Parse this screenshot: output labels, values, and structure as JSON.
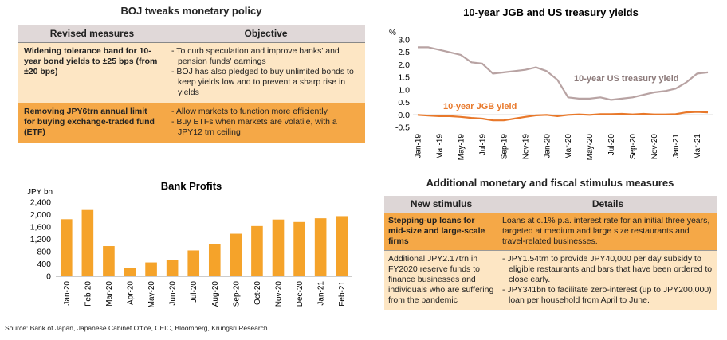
{
  "boj": {
    "title": "BOJ tweaks monetary policy",
    "headers": [
      "Revised measures",
      "Objective"
    ],
    "rows": [
      {
        "measure": "Widening tolerance band for 10-year bond yields to ±25 bps (from ±20 bps)",
        "objectives": [
          "- To curb speculation and improve banks' and pension funds' earnings",
          "- BOJ has also pledged to buy unlimited bonds to keep yields low and to prevent a sharp rise in yields"
        ]
      },
      {
        "measure": "Removing JPY6trn annual limit for buying exchange-traded fund (ETF)",
        "objectives": [
          "- Allow markets to function more efficiently",
          "- Buy ETFs when markets are volatile, with a JPY12 trn ceiling"
        ]
      }
    ]
  },
  "stimulus": {
    "title": "Additional monetary and fiscal stimulus measures",
    "headers": [
      "New stimulus",
      "Details"
    ],
    "rows": [
      {
        "measure": "Stepping-up loans for mid-size and large-scale firms",
        "details": [
          "Loans at c.1% p.a. interest rate for an initial three years, targeted at medium and large size restaurants and travel-related businesses."
        ]
      },
      {
        "measure": "Additional JPY2.17trn in FY2020 reserve funds to finance businesses and individuals who are suffering from the pandemic",
        "details": [
          "- JPY1.54trn to provide JPY40,000 per day subsidy to eligible restaurants and bars that have been ordered to close early.",
          "- JPY341bn to facilitate zero-interest (up to JPY200,000) loan per household from April to June."
        ]
      }
    ]
  },
  "source": "Source: Bank of Japan, Japanese Cabinet Office, CEIC, Bloomberg, Krungsri Research",
  "colors": {
    "bar": "#f5a32a",
    "us": "#b8a3a3",
    "jgb": "#e8782a"
  },
  "chart_data": [
    {
      "type": "bar",
      "title": "Bank Profits",
      "ylabel": "JPY bn",
      "categories": [
        "Jan-20",
        "Feb-20",
        "Mar-20",
        "Apr-20",
        "May-20",
        "Jun-20",
        "Jul-20",
        "Aug-20",
        "Sep-20",
        "Oct-20",
        "Nov-20",
        "Dec-20",
        "Jan-21",
        "Feb-21"
      ],
      "values": [
        1850,
        2150,
        980,
        270,
        450,
        530,
        840,
        1050,
        1380,
        1630,
        1840,
        1760,
        1880,
        1950
      ],
      "ylim": [
        0,
        2400
      ],
      "yticks": [
        "0",
        "400",
        "800",
        "1,200",
        "1,600",
        "2,000",
        "2,400"
      ],
      "grid": false,
      "legend": "none"
    },
    {
      "type": "line",
      "title": "10-year JGB and US treasury yields",
      "ylabel": "%",
      "ylim": [
        -0.5,
        3.0
      ],
      "yticks": [
        "-0.5",
        "0.0",
        "0.5",
        "1.0",
        "1.5",
        "2.0",
        "2.5",
        "3.0"
      ],
      "xticks": [
        "Jan-19",
        "Mar-19",
        "May-19",
        "Jul-19",
        "Sep-19",
        "Nov-19",
        "Jan-20",
        "Mar-20",
        "May-20",
        "Jul-20",
        "Sep-20",
        "Nov-20",
        "Jan-21",
        "Mar-21"
      ],
      "x": [
        "2019-01",
        "2019-02",
        "2019-03",
        "2019-04",
        "2019-05",
        "2019-06",
        "2019-07",
        "2019-08",
        "2019-09",
        "2019-10",
        "2019-11",
        "2019-12",
        "2020-01",
        "2020-02",
        "2020-03",
        "2020-04",
        "2020-05",
        "2020-06",
        "2020-07",
        "2020-08",
        "2020-09",
        "2020-10",
        "2020-11",
        "2020-12",
        "2021-01",
        "2021-02",
        "2021-03",
        "2021-04"
      ],
      "series": [
        {
          "name": "10-year US treasury yield",
          "values": [
            2.7,
            2.7,
            2.6,
            2.5,
            2.4,
            2.1,
            2.05,
            1.65,
            1.7,
            1.75,
            1.8,
            1.9,
            1.75,
            1.4,
            0.7,
            0.65,
            0.65,
            0.7,
            0.6,
            0.65,
            0.7,
            0.8,
            0.9,
            0.95,
            1.05,
            1.3,
            1.65,
            1.7
          ]
        },
        {
          "name": "10-year JGB yield",
          "values": [
            0.0,
            -0.03,
            -0.05,
            -0.05,
            -0.08,
            -0.12,
            -0.15,
            -0.22,
            -0.22,
            -0.15,
            -0.08,
            -0.02,
            0.0,
            -0.05,
            0.0,
            0.02,
            0.0,
            0.03,
            0.03,
            0.04,
            0.02,
            0.04,
            0.02,
            0.02,
            0.03,
            0.1,
            0.12,
            0.1
          ]
        }
      ]
    }
  ]
}
